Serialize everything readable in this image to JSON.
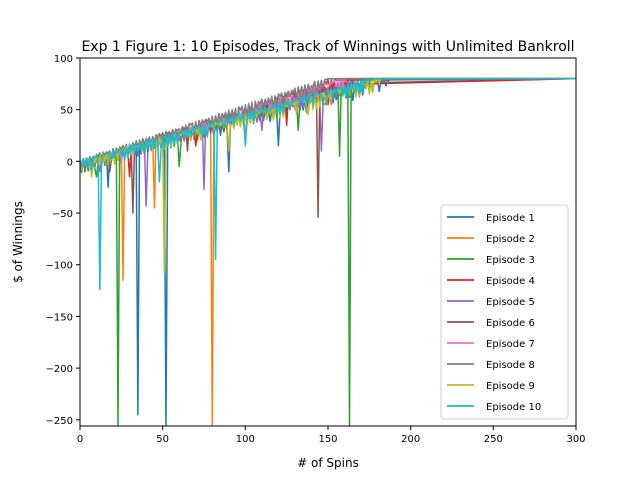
{
  "chart_data": {
    "type": "line",
    "title": "Exp 1 Figure 1: 10 Episodes, Track of Winnings with Unlimited Bankroll",
    "xlabel": "# of Spins",
    "ylabel": "$ of Winnings",
    "xlim": [
      0,
      300
    ],
    "ylim": [
      -256,
      100
    ],
    "xticks": [
      0,
      50,
      100,
      150,
      200,
      250,
      300
    ],
    "yticks": [
      100,
      50,
      0,
      -50,
      -100,
      -150,
      -200,
      -250
    ],
    "xtick_labels": [
      "0",
      "50",
      "100",
      "150",
      "200",
      "250",
      "300"
    ],
    "ytick_labels": [
      "100",
      "50",
      "0",
      "−50",
      "−100",
      "−150",
      "−200",
      "−250"
    ],
    "grid": false,
    "legend_position": "lower-right",
    "target": 80,
    "series": [
      {
        "name": "Episode 1",
        "color": "#1f77b4",
        "plateau_x": 187,
        "dips": [
          [
            3,
            -10
          ],
          [
            17,
            -25
          ],
          [
            35,
            -245
          ],
          [
            52,
            -256
          ],
          [
            90,
            -10
          ],
          [
            120,
            15
          ]
        ]
      },
      {
        "name": "Episode 2",
        "color": "#ff7f0e",
        "plateau_x": 168,
        "dips": [
          [
            8,
            -5
          ],
          [
            26,
            -115
          ],
          [
            45,
            -45
          ],
          [
            80,
            -256
          ],
          [
            100,
            20
          ],
          [
            152,
            55
          ]
        ]
      },
      {
        "name": "Episode 3",
        "color": "#2ca02c",
        "plateau_x": 176,
        "dips": [
          [
            10,
            -15
          ],
          [
            23,
            -256
          ],
          [
            60,
            -5
          ],
          [
            132,
            30
          ],
          [
            157,
            5
          ],
          [
            163,
            -256
          ]
        ]
      },
      {
        "name": "Episode 4",
        "color": "#d62728",
        "plateau_x": 165,
        "dips": [
          [
            6,
            0
          ],
          [
            30,
            -15
          ],
          [
            70,
            15
          ],
          [
            125,
            35
          ],
          [
            150,
            55
          ]
        ]
      },
      {
        "name": "Episode 5",
        "color": "#9467bd",
        "plateau_x": 172,
        "dips": [
          [
            12,
            -10
          ],
          [
            40,
            -43
          ],
          [
            75,
            -27
          ],
          [
            110,
            30
          ],
          [
            146,
            10
          ]
        ]
      },
      {
        "name": "Episode 6",
        "color": "#8c564b",
        "plateau_x": 155,
        "dips": [
          [
            18,
            -10
          ],
          [
            32,
            -50
          ],
          [
            65,
            10
          ],
          [
            144,
            -54
          ]
        ]
      },
      {
        "name": "Episode 7",
        "color": "#e377c2",
        "plateau_x": 160,
        "dips": [
          [
            15,
            0
          ],
          [
            55,
            15
          ],
          [
            95,
            35
          ],
          [
            130,
            50
          ]
        ]
      },
      {
        "name": "Episode 8",
        "color": "#7f7f7f",
        "plateau_x": 150,
        "dips": [
          [
            20,
            5
          ],
          [
            60,
            20
          ],
          [
            105,
            40
          ],
          [
            140,
            60
          ]
        ]
      },
      {
        "name": "Episode 9",
        "color": "#bcbd22",
        "plateau_x": 182,
        "dips": [
          [
            7,
            -15
          ],
          [
            51,
            -108
          ],
          [
            90,
            10
          ],
          [
            138,
            45
          ],
          [
            175,
            65
          ]
        ]
      },
      {
        "name": "Episode 10",
        "color": "#17becf",
        "plateau_x": 176,
        "dips": [
          [
            12,
            -124
          ],
          [
            48,
            -20
          ],
          [
            82,
            -95
          ],
          [
            100,
            15
          ],
          [
            148,
            55
          ]
        ]
      }
    ]
  }
}
